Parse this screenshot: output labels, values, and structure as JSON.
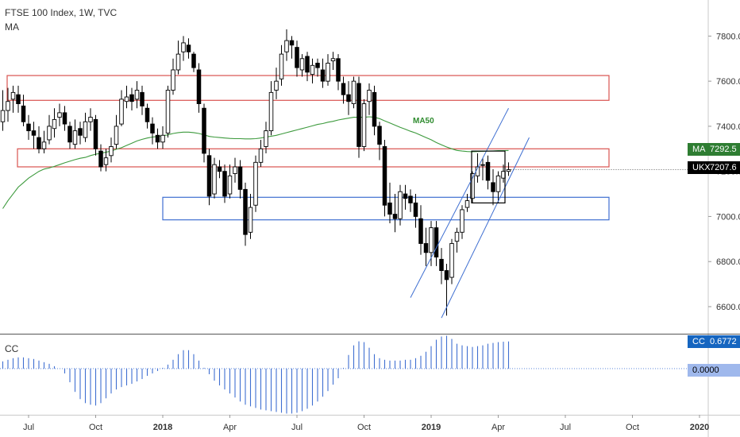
{
  "header": {
    "symbol_line": "FTSE 100 Index, 1W, TVC",
    "indicator": "MA"
  },
  "lower_pane": {
    "title": "CC"
  },
  "price_tags": [
    {
      "name": "MA",
      "value": "7292.5",
      "color": "#2e7d32"
    },
    {
      "name": "UKX",
      "value": "7207.6",
      "color": "#000000"
    },
    {
      "name": "CC",
      "value": "0.6772",
      "color": "#1565c0"
    }
  ],
  "cc_zero_label": "0.0000",
  "ma_label": "MA50",
  "chart_data": [
    {
      "type": "candlestick",
      "title": "FTSE 100 Index, 1W, TVC",
      "y_axis_ticks": [
        6600,
        6800,
        7000,
        7200,
        7400,
        7600,
        7800
      ],
      "y_axis_tick_labels": [
        "6600.0",
        "6800.0",
        "7000.0",
        "7200.0",
        "7400.0",
        "7600.0",
        "7800.0"
      ],
      "ylim": [
        6480,
        7960
      ],
      "x_axis_labels": [
        {
          "label": "Jul",
          "bar": 5
        },
        {
          "label": "Oct",
          "bar": 18
        },
        {
          "label": "2018",
          "bar": 31,
          "bold": true
        },
        {
          "label": "Apr",
          "bar": 44
        },
        {
          "label": "Jul",
          "bar": 57
        },
        {
          "label": "Oct",
          "bar": 70
        },
        {
          "label": "2019",
          "bar": 83,
          "bold": true
        },
        {
          "label": "Apr",
          "bar": 96
        },
        {
          "label": "Jul",
          "bar": 109
        },
        {
          "label": "Oct",
          "bar": 122
        },
        {
          "label": "2020",
          "bar": 135,
          "bold": true
        }
      ],
      "closes": [
        7470,
        7510,
        7550,
        7500,
        7420,
        7380,
        7360,
        7300,
        7330,
        7400,
        7430,
        7460,
        7410,
        7330,
        7380,
        7360,
        7420,
        7440,
        7300,
        7220,
        7260,
        7310,
        7400,
        7520,
        7530,
        7510,
        7560,
        7490,
        7420,
        7370,
        7330,
        7360,
        7560,
        7650,
        7720,
        7770,
        7730,
        7660,
        7500,
        7280,
        7090,
        7230,
        7200,
        7090,
        7180,
        7220,
        7120,
        6920,
        7040,
        7240,
        7300,
        7380,
        7550,
        7600,
        7720,
        7780,
        7760,
        7660,
        7700,
        7640,
        7670,
        7660,
        7600,
        7680,
        7700,
        7600,
        7540,
        7510,
        7600,
        7310,
        7500,
        7560,
        7400,
        7320,
        7050,
        7010,
        6990,
        7110,
        7080,
        7060,
        7000,
        6880,
        6840,
        6950,
        6820,
        6760,
        6720,
        6880,
        6930,
        7030,
        7070,
        7190,
        7220,
        7230,
        7160,
        7110,
        7180,
        7200,
        7207.6
      ],
      "opens": [
        7420,
        7470,
        7520,
        7540,
        7490,
        7410,
        7380,
        7350,
        7300,
        7340,
        7390,
        7440,
        7460,
        7400,
        7320,
        7390,
        7350,
        7420,
        7430,
        7290,
        7230,
        7270,
        7320,
        7410,
        7510,
        7540,
        7520,
        7550,
        7480,
        7410,
        7360,
        7330,
        7370,
        7560,
        7650,
        7730,
        7760,
        7720,
        7650,
        7480,
        7270,
        7100,
        7220,
        7200,
        7100,
        7190,
        7220,
        7120,
        6930,
        7050,
        7240,
        7310,
        7380,
        7560,
        7610,
        7730,
        7780,
        7750,
        7650,
        7710,
        7630,
        7680,
        7650,
        7600,
        7690,
        7700,
        7590,
        7540,
        7500,
        7590,
        7310,
        7510,
        7550,
        7400,
        7310,
        7060,
        7010,
        6990,
        7100,
        7090,
        7060,
        6990,
        6880,
        6840,
        6950,
        6810,
        6760,
        6730,
        6890,
        6930,
        7040,
        7080,
        7180,
        7230,
        7240,
        7150,
        7110,
        7170,
        7200
      ],
      "highs": [
        7560,
        7570,
        7580,
        7580,
        7540,
        7450,
        7420,
        7400,
        7380,
        7450,
        7480,
        7500,
        7490,
        7420,
        7430,
        7420,
        7460,
        7480,
        7450,
        7320,
        7300,
        7350,
        7450,
        7560,
        7580,
        7570,
        7600,
        7580,
        7500,
        7440,
        7390,
        7400,
        7580,
        7700,
        7780,
        7800,
        7790,
        7730,
        7680,
        7500,
        7300,
        7260,
        7250,
        7230,
        7230,
        7260,
        7250,
        7150,
        7100,
        7270,
        7340,
        7420,
        7600,
        7660,
        7760,
        7830,
        7800,
        7780,
        7720,
        7730,
        7700,
        7700,
        7700,
        7720,
        7730,
        7720,
        7620,
        7600,
        7620,
        7620,
        7520,
        7590,
        7580,
        7420,
        7340,
        7150,
        7100,
        7140,
        7140,
        7120,
        7100,
        7050,
        6950,
        6980,
        6980,
        6860,
        6790,
        6900,
        6950,
        7050,
        7100,
        7200,
        7280,
        7260,
        7270,
        7210,
        7200,
        7230,
        7240
      ],
      "lows": [
        7380,
        7420,
        7460,
        7460,
        7400,
        7340,
        7300,
        7280,
        7280,
        7320,
        7350,
        7400,
        7380,
        7300,
        7300,
        7320,
        7330,
        7380,
        7270,
        7200,
        7200,
        7240,
        7300,
        7400,
        7480,
        7470,
        7480,
        7450,
        7390,
        7320,
        7300,
        7300,
        7350,
        7540,
        7630,
        7690,
        7700,
        7640,
        7460,
        7240,
        7050,
        7080,
        7170,
        7060,
        7080,
        7150,
        7080,
        6870,
        6900,
        7020,
        7220,
        7280,
        7360,
        7520,
        7580,
        7690,
        7700,
        7620,
        7620,
        7600,
        7590,
        7620,
        7570,
        7580,
        7650,
        7560,
        7500,
        7450,
        7480,
        7260,
        7290,
        7450,
        7360,
        7250,
        7000,
        6970,
        6930,
        6960,
        7030,
        7020,
        6950,
        6830,
        6780,
        6780,
        6780,
        6700,
        6560,
        6700,
        6840,
        6900,
        7020,
        7060,
        7150,
        7160,
        7120,
        7050,
        7060,
        7150,
        7180
      ],
      "ma50": [
        7035,
        7070,
        7100,
        7130,
        7150,
        7170,
        7185,
        7200,
        7210,
        7215,
        7222,
        7230,
        7238,
        7245,
        7252,
        7258,
        7262,
        7270,
        7276,
        7280,
        7285,
        7290,
        7298,
        7305,
        7315,
        7325,
        7335,
        7342,
        7348,
        7352,
        7355,
        7358,
        7362,
        7368,
        7372,
        7374,
        7374,
        7372,
        7368,
        7362,
        7355,
        7352,
        7350,
        7348,
        7346,
        7345,
        7345,
        7344,
        7344,
        7345,
        7348,
        7352,
        7356,
        7360,
        7366,
        7372,
        7378,
        7384,
        7390,
        7396,
        7402,
        7408,
        7412,
        7418,
        7422,
        7428,
        7432,
        7436,
        7440,
        7440,
        7440,
        7442,
        7440,
        7434,
        7424,
        7415,
        7405,
        7395,
        7387,
        7378,
        7370,
        7360,
        7350,
        7340,
        7328,
        7318,
        7308,
        7300,
        7293,
        7290,
        7288,
        7287,
        7288,
        7289,
        7290,
        7291,
        7292,
        7292,
        7292.5
      ],
      "annotations": {
        "red_zones": [
          [
            7515,
            7625
          ],
          [
            7220,
            7300
          ]
        ],
        "blue_zone": [
          6985,
          7085
        ],
        "consolidation_box": [
          7060,
          7290
        ],
        "channel_upper": [
          {
            "bar": 79,
            "price": 6640
          },
          {
            "bar": 98,
            "price": 7480
          }
        ],
        "channel_lower": [
          {
            "bar": 85,
            "price": 6550
          },
          {
            "bar": 102,
            "price": 7350
          }
        ],
        "label": "MA50"
      }
    },
    {
      "type": "bar",
      "title": "CC",
      "ylim": [
        -1.15,
        0.85
      ],
      "zero_label": "0.0000",
      "values": [
        0.18,
        0.22,
        0.26,
        0.28,
        0.28,
        0.26,
        0.24,
        0.2,
        0.16,
        0.12,
        0.06,
        0,
        -0.12,
        -0.34,
        -0.58,
        -0.76,
        -0.86,
        -0.9,
        -0.92,
        -0.86,
        -0.74,
        -0.62,
        -0.52,
        -0.46,
        -0.42,
        -0.38,
        -0.32,
        -0.26,
        -0.18,
        -0.12,
        -0.06,
        0.02,
        0.1,
        0.22,
        0.36,
        0.46,
        0.46,
        0.36,
        0.2,
        0.02,
        -0.14,
        -0.3,
        -0.42,
        -0.52,
        -0.62,
        -0.72,
        -0.82,
        -0.9,
        -0.94,
        -0.98,
        -1.02,
        -1.04,
        -1.06,
        -1.08,
        -1.1,
        -1.12,
        -1.12,
        -1.1,
        -1.06,
        -1.0,
        -0.92,
        -0.82,
        -0.7,
        -0.56,
        -0.4,
        -0.24,
        0.02,
        0.34,
        0.58,
        0.68,
        0.66,
        0.52,
        0.36,
        0.26,
        0.22,
        0.2,
        0.2,
        0.2,
        0.22,
        0.22,
        0.26,
        0.32,
        0.42,
        0.56,
        0.72,
        0.8,
        0.82,
        0.74,
        0.62,
        0.58,
        0.56,
        0.54,
        0.56,
        0.58,
        0.62,
        0.64,
        0.66,
        0.67,
        0.6772
      ]
    }
  ]
}
